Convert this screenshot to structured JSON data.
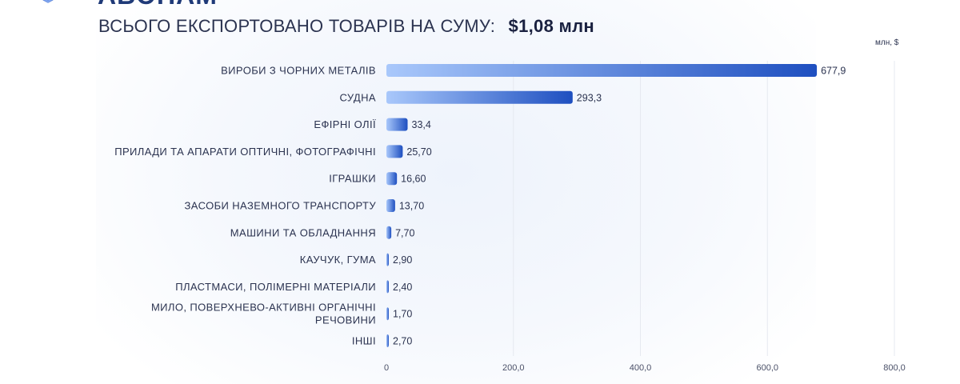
{
  "header": {
    "cut_title": "АБОНАМ",
    "headline_prefix": "ВСЬОГО ЕКСПОРТОВАНО ТОВАРІВ НА СУМУ:",
    "headline_total": "$1,08 млн",
    "unit": "млн, $"
  },
  "chart_data": {
    "type": "bar",
    "orientation": "horizontal",
    "categories": [
      [
        "ВИРОБИ З ЧОРНИХ МЕТАЛІВ"
      ],
      [
        "СУДНА"
      ],
      [
        "ЕФІРНІ ОЛІЇ"
      ],
      [
        "ПРИЛАДИ ТА АПАРАТИ ОПТИЧНІ, ФОТОГРАФІЧНІ"
      ],
      [
        "ІГРАШКИ"
      ],
      [
        "ЗАСОБИ НАЗЕМНОГО ТРАНСПОРТУ"
      ],
      [
        "МАШИНИ ТА ОБЛАДНАННЯ"
      ],
      [
        "КАУЧУК, ГУМА"
      ],
      [
        "ПЛАСТМАСИ, ПОЛІМЕРНІ МАТЕРІАЛИ"
      ],
      [
        "МИЛО, ПОВЕРХНЕВО-АКТИВНІ ОРГАНІЧНІ",
        "РЕЧОВИНИ"
      ],
      [
        "ІНШІ"
      ]
    ],
    "values": [
      677.9,
      293.3,
      33.4,
      25.7,
      16.6,
      13.7,
      7.7,
      2.9,
      2.4,
      1.7,
      2.7
    ],
    "value_labels": [
      "677,9",
      "293,3",
      "33,4",
      "25,70",
      "16,60",
      "13,70",
      "7,70",
      "2,90",
      "2,40",
      "1,70",
      "2,70"
    ],
    "xlim": [
      0,
      800
    ],
    "xticks": [
      0,
      200,
      400,
      600,
      800
    ],
    "xtick_labels": [
      "0",
      "200,0",
      "400,0",
      "600,0",
      "800,0"
    ],
    "grid": true,
    "colors": {
      "bar_start": "#a9c8fb",
      "bar_end": "#1e4fc0",
      "grid": "#e6e9f0"
    }
  }
}
